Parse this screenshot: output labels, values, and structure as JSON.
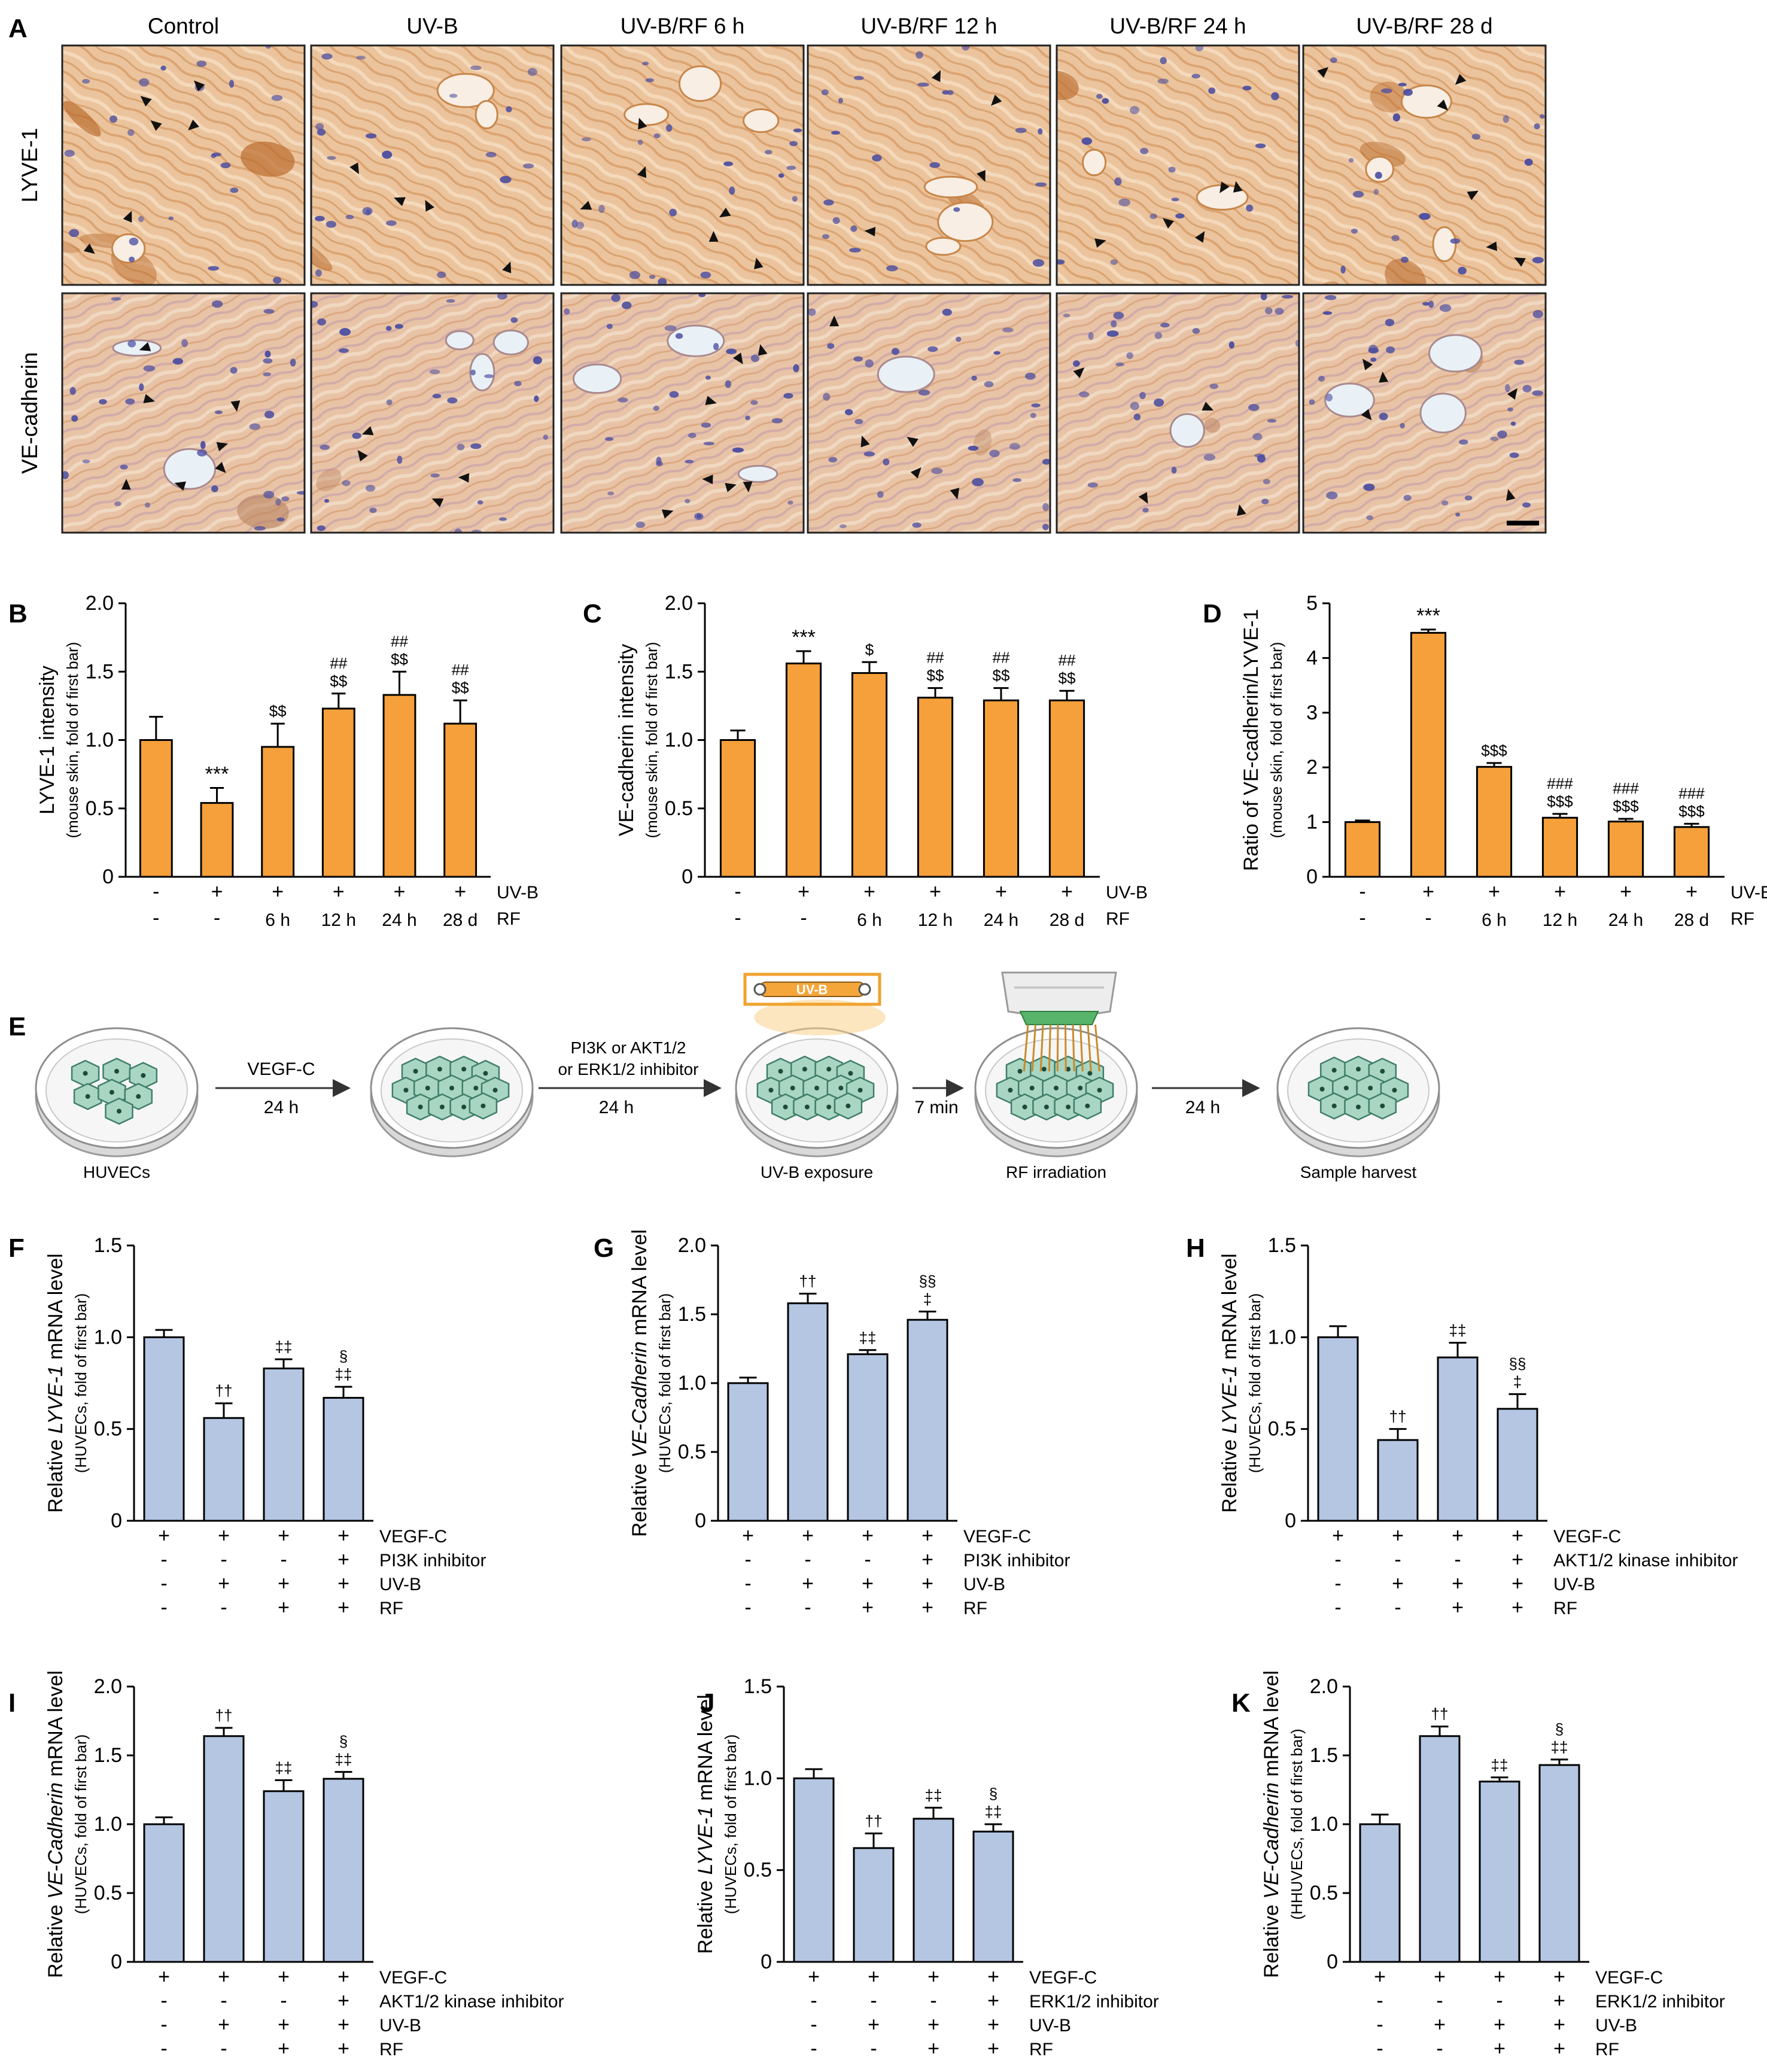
{
  "panel_labels": {
    "a": "A",
    "b": "B",
    "c": "C",
    "d": "D",
    "e": "E",
    "f": "F",
    "g": "G",
    "h": "H",
    "i": "I",
    "j": "J",
    "k": "K"
  },
  "micrographs": {
    "column_headers": [
      "Control",
      "UV-B",
      "UV-B/RF 6 h",
      "UV-B/RF 12 h",
      "UV-B/RF 24 h",
      "UV-B/RF 28 d"
    ],
    "row_labels": [
      "LYVE-1",
      "VE-cadherin"
    ]
  },
  "schematic": {
    "steps": [
      "VEGF-C",
      "PI3K or AKT1/2",
      "or ERK1/2 inhibitor",
      "7 min"
    ],
    "times": [
      "24 h",
      "24 h",
      "24 h"
    ],
    "captions": [
      "HUVECs",
      "UV-B exposure",
      "RF irradiation",
      "Sample harvest"
    ],
    "lamp_label": "UV-B"
  },
  "colors": {
    "orange": "#F5A03A",
    "blue": "#B4C6E2",
    "stain_bg": "#E9BE97",
    "nuclei": "#4A4CA0"
  },
  "chart_data": [
    {
      "id": "b",
      "type": "bar",
      "color": "orange",
      "ylabel_main": "LYVE-1 intensity",
      "ylabel_sub": "(mouse skin, fold of first bar)",
      "yticks": [
        "0",
        "0.5",
        "1.0",
        "1.5",
        "2.0"
      ],
      "ylim": [
        0,
        2.0
      ],
      "values": [
        1.0,
        0.54,
        0.95,
        1.23,
        1.33,
        1.12
      ],
      "errors": [
        0.17,
        0.11,
        0.17,
        0.11,
        0.17,
        0.17
      ],
      "annotations": [
        [
          "",
          ""
        ],
        [
          "***",
          ""
        ],
        [
          "$$",
          ""
        ],
        [
          "##",
          "$$"
        ],
        [
          "##",
          "$$"
        ],
        [
          "##",
          "$$"
        ]
      ],
      "factor_rows": [
        {
          "label": "UV-B",
          "marks": [
            "-",
            "+",
            "+",
            "+",
            "+",
            "+"
          ]
        },
        {
          "label": "RF",
          "marks": [
            "-",
            "-",
            "6 h",
            "12 h",
            "24 h",
            "28 d"
          ]
        }
      ]
    },
    {
      "id": "c",
      "type": "bar",
      "color": "orange",
      "ylabel_main": "VE-cadherin intensity",
      "ylabel_sub": "(mouse skin, fold of first bar)",
      "yticks": [
        "0",
        "0.5",
        "1.0",
        "1.5",
        "2.0"
      ],
      "ylim": [
        0,
        2.0
      ],
      "values": [
        1.0,
        1.56,
        1.49,
        1.31,
        1.29,
        1.29
      ],
      "errors": [
        0.07,
        0.09,
        0.08,
        0.07,
        0.09,
        0.07
      ],
      "annotations": [
        [
          "",
          ""
        ],
        [
          "***",
          ""
        ],
        [
          "$",
          ""
        ],
        [
          "##",
          "$$"
        ],
        [
          "##",
          "$$"
        ],
        [
          "##",
          "$$"
        ]
      ],
      "factor_rows": [
        {
          "label": "UV-B",
          "marks": [
            "-",
            "+",
            "+",
            "+",
            "+",
            "+"
          ]
        },
        {
          "label": "RF",
          "marks": [
            "-",
            "-",
            "6 h",
            "12 h",
            "24 h",
            "28 d"
          ]
        }
      ]
    },
    {
      "id": "d",
      "type": "bar",
      "color": "orange",
      "ylabel_main": "Ratio of VE-cadherin/LYVE-1",
      "ylabel_sub": "(mouse skin, fold of first bar)",
      "yticks": [
        "0",
        "1",
        "2",
        "3",
        "4",
        "5"
      ],
      "ylim": [
        0,
        5
      ],
      "values": [
        1.0,
        4.46,
        2.01,
        1.08,
        1.01,
        0.91
      ],
      "errors": [
        0.03,
        0.06,
        0.07,
        0.07,
        0.05,
        0.06
      ],
      "annotations": [
        [
          "",
          ""
        ],
        [
          "***",
          ""
        ],
        [
          "$$$",
          ""
        ],
        [
          "###",
          "$$$"
        ],
        [
          "###",
          "$$$"
        ],
        [
          "###",
          "$$$"
        ]
      ],
      "factor_rows": [
        {
          "label": "UV-B",
          "marks": [
            "-",
            "+",
            "+",
            "+",
            "+",
            "+"
          ]
        },
        {
          "label": "RF",
          "marks": [
            "-",
            "-",
            "6 h",
            "12 h",
            "24 h",
            "28 d"
          ]
        }
      ]
    },
    {
      "id": "f",
      "type": "bar",
      "color": "blue",
      "ylabel_pre": "Relative ",
      "ylabel_gene": "LYVE-1",
      "ylabel_post": " mRNA level",
      "ylabel_sub": "(HUVECs, fold of first bar)",
      "yticks": [
        "0",
        "0.5",
        "1.0",
        "1.5"
      ],
      "ylim": [
        0,
        1.5
      ],
      "values": [
        1.0,
        0.56,
        0.83,
        0.67
      ],
      "errors": [
        0.04,
        0.08,
        0.05,
        0.06
      ],
      "annotations": [
        [
          "",
          ""
        ],
        [
          "††",
          ""
        ],
        [
          "‡‡",
          ""
        ],
        [
          "§",
          "‡‡"
        ]
      ],
      "factor_rows": [
        {
          "label": "VEGF-C",
          "marks": [
            "+",
            "+",
            "+",
            "+"
          ]
        },
        {
          "label": "PI3K inhibitor",
          "marks": [
            "-",
            "-",
            "-",
            "+"
          ]
        },
        {
          "label": "UV-B",
          "marks": [
            "-",
            "+",
            "+",
            "+"
          ]
        },
        {
          "label": "RF",
          "marks": [
            "-",
            "-",
            "+",
            "+"
          ]
        }
      ]
    },
    {
      "id": "g",
      "type": "bar",
      "color": "blue",
      "ylabel_pre": "Relative ",
      "ylabel_gene": "VE-Cadherin",
      "ylabel_post": " mRNA level",
      "ylabel_sub": "(HUVECs, fold of first bar)",
      "yticks": [
        "0",
        "0.5",
        "1.0",
        "1.5",
        "2.0"
      ],
      "ylim": [
        0,
        2.0
      ],
      "values": [
        1.0,
        1.58,
        1.21,
        1.46
      ],
      "errors": [
        0.04,
        0.07,
        0.03,
        0.06
      ],
      "annotations": [
        [
          "",
          ""
        ],
        [
          "††",
          ""
        ],
        [
          "‡‡",
          ""
        ],
        [
          "§§",
          "‡"
        ]
      ],
      "factor_rows": [
        {
          "label": "VEGF-C",
          "marks": [
            "+",
            "+",
            "+",
            "+"
          ]
        },
        {
          "label": "PI3K inhibitor",
          "marks": [
            "-",
            "-",
            "-",
            "+"
          ]
        },
        {
          "label": "UV-B",
          "marks": [
            "-",
            "+",
            "+",
            "+"
          ]
        },
        {
          "label": "RF",
          "marks": [
            "-",
            "-",
            "+",
            "+"
          ]
        }
      ]
    },
    {
      "id": "h",
      "type": "bar",
      "color": "blue",
      "ylabel_pre": "Relative ",
      "ylabel_gene": "LYVE-1",
      "ylabel_post": " mRNA level",
      "ylabel_sub": "(HUVECs, fold of first bar)",
      "yticks": [
        "0",
        "0.5",
        "1.0",
        "1.5"
      ],
      "ylim": [
        0,
        1.5
      ],
      "values": [
        1.0,
        0.44,
        0.89,
        0.61
      ],
      "errors": [
        0.06,
        0.06,
        0.08,
        0.08
      ],
      "annotations": [
        [
          "",
          ""
        ],
        [
          "††",
          ""
        ],
        [
          "‡‡",
          ""
        ],
        [
          "§§",
          "‡"
        ]
      ],
      "factor_rows": [
        {
          "label": "VEGF-C",
          "marks": [
            "+",
            "+",
            "+",
            "+"
          ]
        },
        {
          "label": "AKT1/2 kinase inhibitor",
          "marks": [
            "-",
            "-",
            "-",
            "+"
          ]
        },
        {
          "label": "UV-B",
          "marks": [
            "-",
            "+",
            "+",
            "+"
          ]
        },
        {
          "label": "RF",
          "marks": [
            "-",
            "-",
            "+",
            "+"
          ]
        }
      ]
    },
    {
      "id": "i",
      "type": "bar",
      "color": "blue",
      "ylabel_pre": "Relative ",
      "ylabel_gene": "VE-Cadherin",
      "ylabel_post": " mRNA level",
      "ylabel_sub": "(HUVECs, fold of first bar)",
      "yticks": [
        "0",
        "0.5",
        "1.0",
        "1.5",
        "2.0"
      ],
      "ylim": [
        0,
        2.0
      ],
      "values": [
        1.0,
        1.64,
        1.24,
        1.33
      ],
      "errors": [
        0.05,
        0.06,
        0.08,
        0.05
      ],
      "annotations": [
        [
          "",
          ""
        ],
        [
          "††",
          ""
        ],
        [
          "‡‡",
          ""
        ],
        [
          "§",
          "‡‡"
        ]
      ],
      "factor_rows": [
        {
          "label": "VEGF-C",
          "marks": [
            "+",
            "+",
            "+",
            "+"
          ]
        },
        {
          "label": "AKT1/2 kinase inhibitor",
          "marks": [
            "-",
            "-",
            "-",
            "+"
          ]
        },
        {
          "label": "UV-B",
          "marks": [
            "-",
            "+",
            "+",
            "+"
          ]
        },
        {
          "label": "RF",
          "marks": [
            "-",
            "-",
            "+",
            "+"
          ]
        }
      ]
    },
    {
      "id": "j",
      "type": "bar",
      "color": "blue",
      "ylabel_pre": "Relative ",
      "ylabel_gene": "LYVE-1",
      "ylabel_post": " mRNA level",
      "ylabel_sub": "(HUVECs, fold of first bar)",
      "yticks": [
        "0",
        "0.5",
        "1.0",
        "1.5"
      ],
      "ylim": [
        0,
        1.5
      ],
      "values": [
        1.0,
        0.62,
        0.78,
        0.71
      ],
      "errors": [
        0.05,
        0.08,
        0.06,
        0.04
      ],
      "annotations": [
        [
          "",
          ""
        ],
        [
          "††",
          ""
        ],
        [
          "‡‡",
          ""
        ],
        [
          "§",
          "‡‡"
        ]
      ],
      "factor_rows": [
        {
          "label": "VEGF-C",
          "marks": [
            "+",
            "+",
            "+",
            "+"
          ]
        },
        {
          "label": "ERK1/2  inhibitor",
          "marks": [
            "-",
            "-",
            "-",
            "+"
          ]
        },
        {
          "label": "UV-B",
          "marks": [
            "-",
            "+",
            "+",
            "+"
          ]
        },
        {
          "label": "RF",
          "marks": [
            "-",
            "-",
            "+",
            "+"
          ]
        }
      ]
    },
    {
      "id": "k",
      "type": "bar",
      "color": "blue",
      "ylabel_pre": "Relative ",
      "ylabel_gene": "VE-Cadherin",
      "ylabel_post": " mRNA level",
      "ylabel_sub": "(HHUVECs, fold of first bar)",
      "yticks": [
        "0",
        "0.5",
        "1.0",
        "1.5",
        "2.0"
      ],
      "ylim": [
        0,
        2.0
      ],
      "values": [
        1.0,
        1.64,
        1.31,
        1.43
      ],
      "errors": [
        0.07,
        0.07,
        0.03,
        0.04
      ],
      "annotations": [
        [
          "",
          ""
        ],
        [
          "††",
          ""
        ],
        [
          "‡‡",
          ""
        ],
        [
          "§",
          "‡‡"
        ]
      ],
      "factor_rows": [
        {
          "label": "VEGF-C",
          "marks": [
            "+",
            "+",
            "+",
            "+"
          ]
        },
        {
          "label": "ERK1/2  inhibitor",
          "marks": [
            "-",
            "-",
            "-",
            "+"
          ]
        },
        {
          "label": "UV-B",
          "marks": [
            "-",
            "+",
            "+",
            "+"
          ]
        },
        {
          "label": "RF",
          "marks": [
            "-",
            "-",
            "+",
            "+"
          ]
        }
      ]
    }
  ]
}
